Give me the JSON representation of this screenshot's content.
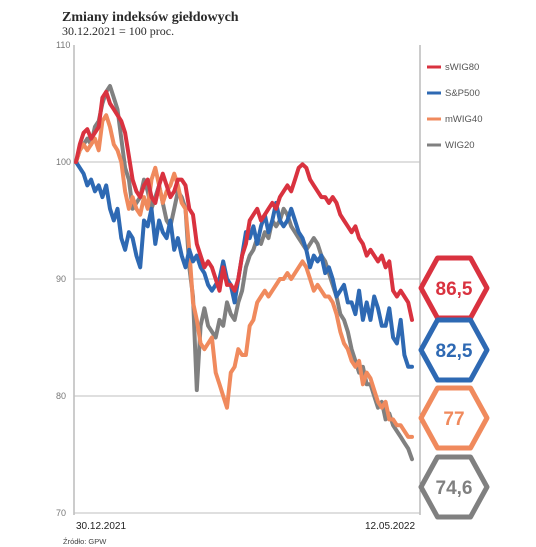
{
  "title": "Zmiany indeksów giełdowych",
  "subtitle": "30.12.2021 = 100 proc.",
  "source": "Źródło: GPW",
  "chart_data": {
    "type": "line",
    "ylim": [
      70,
      110
    ],
    "yticks": [
      "110",
      "100",
      "90",
      "80",
      "70"
    ],
    "grid": true,
    "legend_position": "top-right",
    "x_start_label": "30.12.2021",
    "x_end_label": "12.05.2022",
    "n_points": 90,
    "series": [
      {
        "name": "sWIG80",
        "color": "#d9323f",
        "end_value": "86,5",
        "values": [
          100.0,
          101.5,
          102.5,
          102.8,
          102.0,
          102.5,
          103.0,
          105.5,
          106.0,
          105.0,
          104.5,
          104.0,
          103.5,
          102.5,
          100.5,
          98.5,
          97.5,
          97.0,
          98.0,
          98.5,
          97.0,
          96.5,
          98.0,
          99.0,
          98.0,
          97.0,
          97.5,
          98.5,
          98.5,
          98.0,
          96.0,
          95.5,
          93.0,
          92.0,
          91.0,
          91.5,
          91.0,
          90.0,
          89.0,
          91.0,
          89.5,
          89.5,
          89.0,
          90.0,
          92.0,
          93.0,
          95.0,
          95.5,
          96.0,
          95.0,
          95.5,
          96.0,
          96.5,
          96.0,
          97.0,
          97.5,
          98.0,
          97.5,
          98.5,
          99.5,
          99.8,
          99.5,
          98.5,
          98.0,
          97.5,
          97.0,
          97.0,
          96.5,
          97.0,
          96.5,
          95.5,
          95.0,
          94.5,
          94.0,
          94.5,
          93.5,
          93.0,
          92.0,
          92.5,
          92.0,
          91.5,
          92.0,
          91.0,
          91.5,
          89.0,
          88.5,
          89.0,
          88.5,
          88.0,
          86.5
        ]
      },
      {
        "name": "S&P500",
        "color": "#2e69b3",
        "end_value": "82,5",
        "values": [
          100.0,
          99.5,
          99.0,
          98.0,
          98.5,
          97.5,
          98.0,
          97.0,
          98.0,
          96.0,
          95.0,
          96.0,
          93.5,
          92.5,
          94.0,
          93.5,
          92.0,
          91.0,
          95.0,
          94.5,
          96.0,
          93.0,
          95.0,
          94.0,
          93.5,
          95.0,
          92.5,
          93.5,
          92.0,
          91.0,
          92.5,
          91.5,
          92.0,
          91.0,
          90.5,
          89.5,
          89.0,
          89.5,
          90.0,
          91.5,
          90.0,
          89.5,
          88.0,
          90.0,
          92.0,
          94.0,
          93.5,
          94.5,
          93.0,
          94.5,
          95.5,
          94.0,
          95.0,
          96.5,
          95.0,
          94.5,
          95.0,
          96.0,
          95.0,
          94.0,
          93.5,
          92.5,
          91.0,
          92.0,
          91.5,
          92.0,
          90.5,
          91.0,
          90.0,
          88.5,
          89.0,
          89.5,
          88.0,
          88.0,
          87.0,
          89.0,
          86.5,
          88.0,
          86.5,
          88.5,
          87.5,
          86.0,
          86.0,
          87.5,
          85.0,
          84.5,
          86.5,
          83.5,
          82.5,
          82.5
        ]
      },
      {
        "name": "mWIG40",
        "color": "#f08a5d",
        "end_value": "77",
        "values": [
          100.0,
          101.0,
          101.5,
          101.0,
          101.5,
          102.0,
          101.0,
          103.5,
          104.0,
          103.0,
          101.5,
          101.0,
          100.0,
          97.5,
          96.0,
          97.0,
          96.0,
          95.5,
          97.0,
          96.0,
          98.5,
          99.5,
          98.0,
          96.5,
          97.5,
          98.0,
          99.0,
          98.0,
          96.5,
          96.0,
          92.5,
          88.0,
          86.5,
          84.5,
          84.0,
          84.5,
          85.0,
          82.0,
          81.0,
          80.0,
          79.0,
          82.0,
          82.5,
          84.0,
          83.5,
          83.5,
          86.0,
          86.5,
          88.0,
          88.5,
          89.0,
          88.5,
          89.0,
          89.5,
          90.0,
          90.0,
          90.5,
          90.0,
          90.5,
          91.0,
          91.5,
          91.0,
          90.0,
          89.0,
          89.5,
          89.0,
          88.5,
          88.5,
          88.0,
          87.0,
          85.5,
          84.5,
          84.0,
          83.0,
          82.5,
          83.0,
          81.0,
          82.0,
          81.5,
          80.5,
          79.5,
          79.0,
          79.5,
          78.0,
          78.0,
          77.5,
          77.5,
          77.0,
          76.5,
          76.5
        ]
      },
      {
        "name": "WIG20",
        "color": "#808080",
        "end_value": "74,6",
        "values": [
          100.0,
          101.0,
          101.5,
          102.0,
          101.5,
          103.0,
          103.5,
          105.0,
          106.0,
          106.5,
          105.5,
          104.5,
          102.0,
          99.5,
          98.5,
          96.0,
          96.5,
          97.0,
          98.5,
          97.5,
          96.0,
          97.0,
          98.0,
          96.5,
          95.0,
          94.5,
          96.0,
          97.5,
          97.0,
          96.0,
          91.0,
          88.5,
          80.5,
          86.0,
          87.5,
          86.0,
          85.5,
          85.0,
          86.5,
          86.0,
          88.0,
          87.0,
          86.5,
          88.0,
          89.0,
          91.0,
          92.0,
          92.5,
          93.5,
          93.0,
          94.0,
          93.5,
          95.0,
          94.5,
          95.0,
          96.0,
          95.5,
          94.5,
          94.0,
          93.5,
          93.0,
          92.5,
          93.0,
          93.5,
          93.0,
          92.0,
          91.5,
          90.5,
          89.5,
          88.5,
          87.0,
          86.5,
          85.5,
          84.0,
          83.0,
          82.0,
          82.5,
          81.0,
          81.0,
          80.0,
          79.0,
          79.5,
          78.0,
          78.5,
          77.5,
          77.0,
          76.5,
          76.0,
          75.5,
          74.6
        ]
      }
    ]
  }
}
